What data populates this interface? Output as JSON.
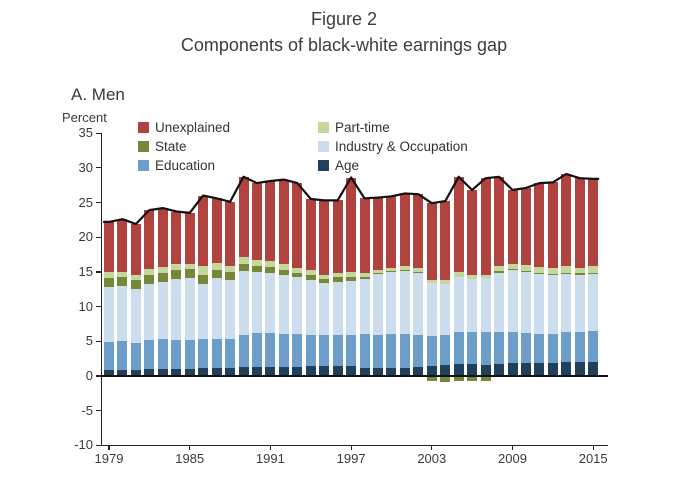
{
  "figure": {
    "title": "Figure 2",
    "subtitle": "Components of black-white earnings gap",
    "panel_label": "A. Men",
    "unit_label": "Percent"
  },
  "legend": {
    "columns": [
      [
        {
          "label": "Unexplained",
          "color": "#b04240"
        },
        {
          "label": "State",
          "color": "#748838"
        },
        {
          "label": "Education",
          "color": "#6d9dc9"
        }
      ],
      [
        {
          "label": "Part-time",
          "color": "#c6d79c"
        },
        {
          "label": "Industry & Occupation",
          "color": "#ccdded"
        },
        {
          "label": "Age",
          "color": "#21405c"
        }
      ]
    ]
  },
  "chart_data": {
    "type": "bar",
    "stacked": true,
    "title": "Components of black-white earnings gap",
    "panel": "A. Men",
    "ylabel": "Percent",
    "ylim": [
      -10,
      35
    ],
    "yticks": [
      35,
      30,
      25,
      20,
      15,
      10,
      5,
      0,
      -5,
      -10
    ],
    "xticks": [
      1979,
      1985,
      1991,
      1997,
      2003,
      2009,
      2015
    ],
    "years": [
      1979,
      1980,
      1981,
      1982,
      1983,
      1984,
      1985,
      1986,
      1987,
      1988,
      1989,
      1990,
      1991,
      1992,
      1993,
      1994,
      1995,
      1996,
      1997,
      1998,
      1999,
      2000,
      2001,
      2002,
      2003,
      2004,
      2005,
      2006,
      2007,
      2008,
      2009,
      2010,
      2011,
      2012,
      2013,
      2014,
      2015
    ],
    "series": [
      {
        "name": "Age",
        "color": "#21405c",
        "values": [
          0.9,
          0.9,
          0.8,
          0.95,
          1.0,
          1.0,
          1.05,
          1.1,
          1.1,
          1.1,
          1.25,
          1.3,
          1.3,
          1.3,
          1.35,
          1.4,
          1.4,
          1.45,
          1.5,
          1.1,
          1.1,
          1.2,
          1.2,
          1.3,
          1.5,
          1.6,
          1.7,
          1.7,
          1.6,
          1.7,
          1.9,
          1.9,
          1.9,
          1.9,
          2.0,
          2.0,
          2.0
        ]
      },
      {
        "name": "Education",
        "color": "#6d9dc9",
        "values": [
          4.0,
          4.1,
          4.0,
          4.25,
          4.3,
          4.15,
          4.15,
          4.2,
          4.25,
          4.2,
          4.65,
          4.85,
          4.9,
          4.8,
          4.65,
          4.5,
          4.45,
          4.45,
          4.4,
          4.9,
          4.8,
          4.8,
          4.8,
          4.6,
          4.3,
          4.3,
          4.6,
          4.7,
          4.8,
          4.6,
          4.4,
          4.3,
          4.2,
          4.1,
          4.3,
          4.4,
          4.5
        ]
      },
      {
        "name": "Industry & Occupation",
        "color": "#ccdded",
        "values": [
          7.9,
          8.0,
          7.7,
          8.1,
          8.2,
          8.85,
          8.9,
          8.0,
          8.75,
          8.5,
          9.3,
          8.85,
          8.6,
          8.4,
          8.2,
          8.0,
          7.55,
          7.7,
          7.8,
          8.0,
          8.8,
          9.0,
          9.2,
          9.0,
          7.6,
          7.3,
          8.0,
          7.6,
          7.7,
          8.6,
          9.0,
          8.8,
          8.6,
          8.6,
          8.4,
          8.2,
          8.2
        ]
      },
      {
        "name": "State",
        "color": "#748838",
        "values": [
          1.3,
          1.3,
          1.3,
          1.3,
          1.3,
          1.3,
          1.3,
          1.3,
          1.2,
          1.2,
          0.9,
          0.9,
          0.9,
          0.8,
          0.7,
          0.7,
          0.6,
          0.6,
          0.6,
          0.3,
          0.1,
          0.1,
          0.1,
          0.1,
          -0.6,
          -0.7,
          -0.5,
          -0.6,
          -0.5,
          0.2,
          0.1,
          0.1,
          0.1,
          0.15,
          0.2,
          0.2,
          0.2
        ]
      },
      {
        "name": "Part-time",
        "color": "#c6d79c",
        "values": [
          0.85,
          0.7,
          0.7,
          0.8,
          0.9,
          0.8,
          0.8,
          1.2,
          1.0,
          0.9,
          1.0,
          0.8,
          0.8,
          0.8,
          0.7,
          0.7,
          0.6,
          0.7,
          0.7,
          0.5,
          0.5,
          0.5,
          0.5,
          0.5,
          0.5,
          0.6,
          0.7,
          0.6,
          0.4,
          0.8,
          0.8,
          0.9,
          0.9,
          0.85,
          0.9,
          0.8,
          1.0
        ]
      },
      {
        "name": "Unexplained",
        "color": "#b04240",
        "values": [
          7.25,
          7.6,
          7.4,
          8.5,
          8.5,
          7.6,
          7.3,
          10.2,
          9.3,
          9.2,
          11.6,
          11.1,
          11.6,
          12.2,
          12.2,
          10.2,
          10.7,
          10.4,
          13.6,
          10.8,
          10.4,
          10.3,
          10.5,
          10.7,
          11.0,
          11.4,
          13.7,
          12.2,
          14.0,
          12.8,
          10.6,
          11.1,
          12.1,
          12.3,
          13.3,
          12.9,
          12.5
        ]
      }
    ],
    "total_line": {
      "color": "#111111",
      "totals": [
        22.2,
        22.6,
        21.9,
        23.9,
        24.2,
        23.7,
        23.5,
        26.0,
        25.6,
        25.1,
        28.7,
        27.8,
        28.1,
        28.3,
        27.8,
        25.5,
        25.3,
        25.3,
        28.6,
        25.6,
        25.7,
        25.9,
        26.3,
        26.2,
        24.9,
        25.2,
        28.7,
        26.8,
        28.5,
        28.7,
        26.8,
        27.1,
        27.8,
        27.9,
        29.1,
        28.5,
        28.4
      ]
    },
    "legend_position": "top-inside",
    "grid": false
  }
}
